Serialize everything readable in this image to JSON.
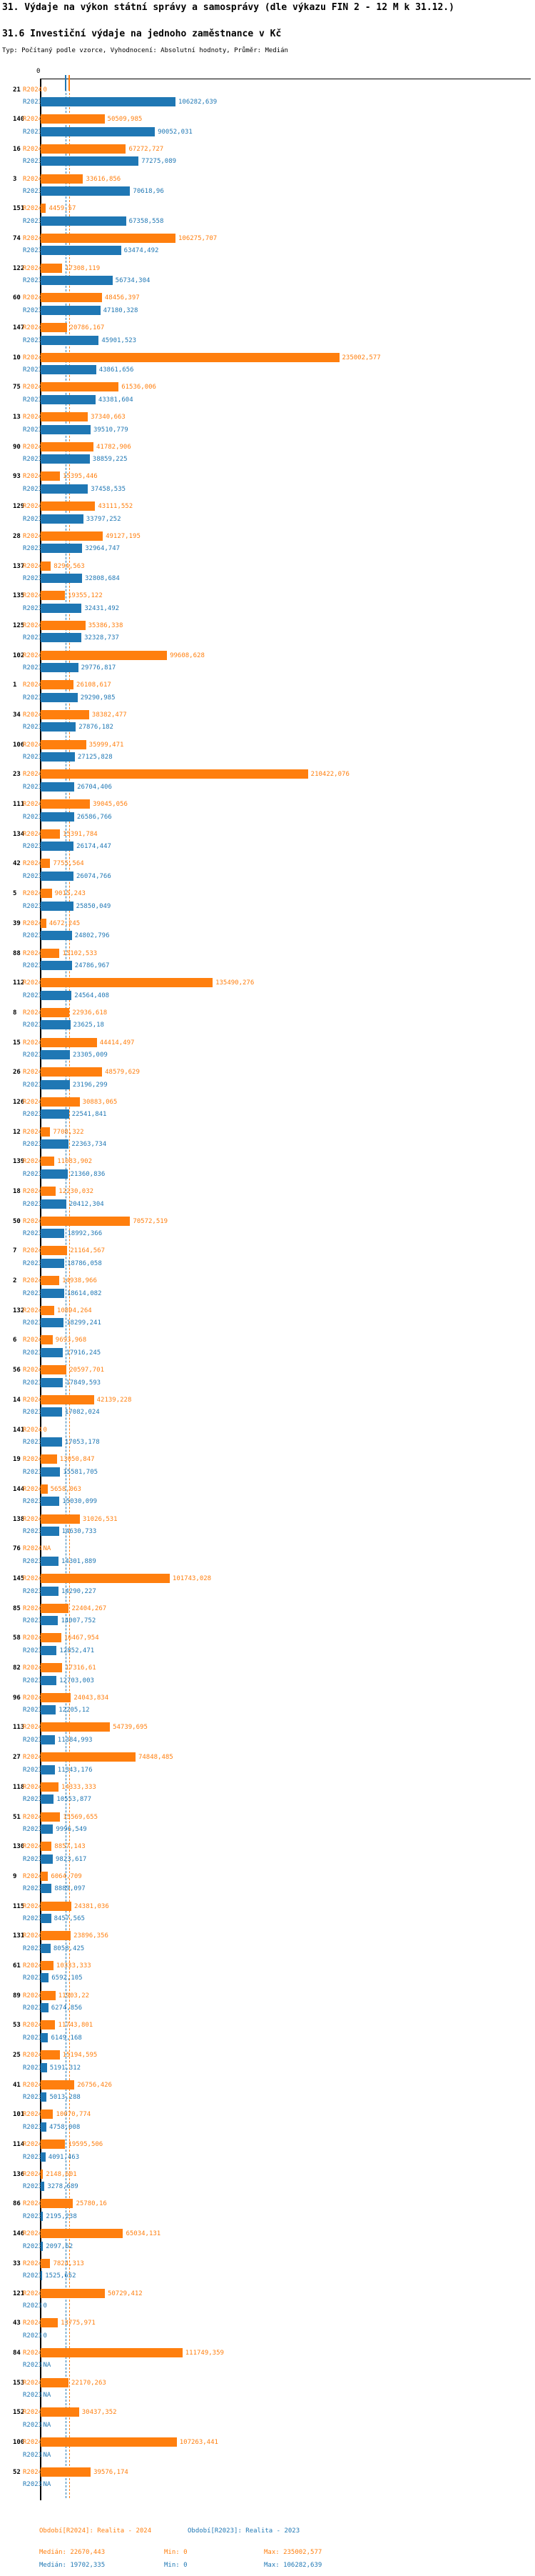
{
  "header": {
    "title": "31. Výdaje na výkon státní správy a samosprávy (dle výkazu FIN 2 - 12 M k 31.12.)",
    "subtitle": "31.6 Investiční výdaje na jednoho zaměstnance v Kč",
    "typ_line": "Typ: Počítaný podle vzorce, Vyhodnocení: Absolutní hodnoty, Průměr: Medián"
  },
  "colors": {
    "r2024": "#ff7f0e",
    "r2023": "#1f77b4",
    "axis": "#000000"
  },
  "legend": {
    "period_2024": "Období[R2024]: Realita - 2024",
    "period_2023": "Období[R2023]: Realita - 2023",
    "median_2024": "Medián: 22670,443",
    "min_2024": "Min: 0",
    "max_2024": "Max: 235002,577",
    "median_2023": "Medián: 19702,335",
    "min_2023": "Min: 0",
    "max_2023": "Max: 106282,639"
  },
  "chart_data": {
    "type": "bar",
    "orientation": "horizontal",
    "title": "31.6 Investiční výdaje na jednoho zaměstnance v Kč",
    "unit": "Kč",
    "x_origin_label": "0",
    "series_labels": [
      "R2024",
      "R2023"
    ],
    "medians": {
      "R2024": 22670.443,
      "R2023": 19702.335
    },
    "mins": {
      "R2024": 0,
      "R2023": 0
    },
    "maxs": {
      "R2024": 235002.577,
      "R2023": 106282.639
    },
    "sort": "descending by R2023",
    "rows": [
      {
        "id": "21",
        "r2024": "0",
        "r2023": "106282,639"
      },
      {
        "id": "140",
        "r2024": "50509,985",
        "r2023": "90052,031"
      },
      {
        "id": "16",
        "r2024": "67272,727",
        "r2023": "77275,089"
      },
      {
        "id": "3",
        "r2024": "33616,856",
        "r2023": "70618,96"
      },
      {
        "id": "151",
        "r2024": "4459,57",
        "r2023": "67358,558"
      },
      {
        "id": "74",
        "r2024": "106275,707",
        "r2023": "63474,492"
      },
      {
        "id": "122",
        "r2024": "17308,119",
        "r2023": "56734,304"
      },
      {
        "id": "60",
        "r2024": "48456,397",
        "r2023": "47180,328"
      },
      {
        "id": "147",
        "r2024": "20786,167",
        "r2023": "45901,523"
      },
      {
        "id": "10",
        "r2024": "235002,577",
        "r2023": "43861,656"
      },
      {
        "id": "75",
        "r2024": "61536,006",
        "r2023": "43381,604"
      },
      {
        "id": "13",
        "r2024": "37340,663",
        "r2023": "39510,779"
      },
      {
        "id": "90",
        "r2024": "41782,906",
        "r2023": "38859,225"
      },
      {
        "id": "93",
        "r2024": "15395,446",
        "r2023": "37458,535"
      },
      {
        "id": "129",
        "r2024": "43111,552",
        "r2023": "33797,252"
      },
      {
        "id": "28",
        "r2024": "49127,195",
        "r2023": "32964,747"
      },
      {
        "id": "137",
        "r2024": "8294,563",
        "r2023": "32808,684"
      },
      {
        "id": "135",
        "r2024": "19355,122",
        "r2023": "32431,492"
      },
      {
        "id": "125",
        "r2024": "35386,338",
        "r2023": "32328,737"
      },
      {
        "id": "102",
        "r2024": "99608,628",
        "r2023": "29776,817"
      },
      {
        "id": "1",
        "r2024": "26108,617",
        "r2023": "29290,985"
      },
      {
        "id": "34",
        "r2024": "38382,477",
        "r2023": "27876,182"
      },
      {
        "id": "106",
        "r2024": "35999,471",
        "r2023": "27125,828"
      },
      {
        "id": "23",
        "r2024": "210422,076",
        "r2023": "26704,406"
      },
      {
        "id": "111",
        "r2024": "39045,056",
        "r2023": "26586,766"
      },
      {
        "id": "134",
        "r2024": "15391,784",
        "r2023": "26174,447"
      },
      {
        "id": "42",
        "r2024": "7755,564",
        "r2023": "26074,766"
      },
      {
        "id": "5",
        "r2024": "9015,243",
        "r2023": "25850,049"
      },
      {
        "id": "39",
        "r2024": "4672,245",
        "r2023": "24802,796"
      },
      {
        "id": "88",
        "r2024": "15102,533",
        "r2023": "24786,967"
      },
      {
        "id": "112",
        "r2024": "135490,276",
        "r2023": "24564,408"
      },
      {
        "id": "8",
        "r2024": "22936,618",
        "r2023": "23625,18"
      },
      {
        "id": "15",
        "r2024": "44414,497",
        "r2023": "23305,009"
      },
      {
        "id": "26",
        "r2024": "48579,629",
        "r2023": "23196,299"
      },
      {
        "id": "126",
        "r2024": "30883,065",
        "r2023": "22541,841"
      },
      {
        "id": "12",
        "r2024": "7708,322",
        "r2023": "22363,734"
      },
      {
        "id": "139",
        "r2024": "11083,902",
        "r2023": "21360,836"
      },
      {
        "id": "18",
        "r2024": "12230,032",
        "r2023": "20412,304"
      },
      {
        "id": "50",
        "r2024": "70572,519",
        "r2023": "18992,366"
      },
      {
        "id": "7",
        "r2024": "21164,567",
        "r2023": "18786,058"
      },
      {
        "id": "2",
        "r2024": "14938,966",
        "r2023": "18614,082"
      },
      {
        "id": "132",
        "r2024": "10894,264",
        "r2023": "18299,241"
      },
      {
        "id": "6",
        "r2024": "9693,968",
        "r2023": "17916,245"
      },
      {
        "id": "56",
        "r2024": "20597,701",
        "r2023": "17849,593"
      },
      {
        "id": "14",
        "r2024": "42139,228",
        "r2023": "17082,024"
      },
      {
        "id": "141",
        "r2024": "0",
        "r2023": "17053,178"
      },
      {
        "id": "19",
        "r2024": "13050,847",
        "r2023": "15581,705"
      },
      {
        "id": "144",
        "r2024": "5658,063",
        "r2023": "15030,099"
      },
      {
        "id": "138",
        "r2024": "31026,531",
        "r2023": "14630,733"
      },
      {
        "id": "76",
        "r2024": "NA",
        "r2023": "14301,889"
      },
      {
        "id": "145",
        "r2024": "101743,028",
        "r2023": "14290,227"
      },
      {
        "id": "85",
        "r2024": "22404,267",
        "r2023": "14007,752"
      },
      {
        "id": "58",
        "r2024": "16467,954",
        "r2023": "12852,471"
      },
      {
        "id": "82",
        "r2024": "17316,61",
        "r2023": "12703,003"
      },
      {
        "id": "96",
        "r2024": "24043,834",
        "r2023": "12205,12"
      },
      {
        "id": "113",
        "r2024": "54739,695",
        "r2023": "11384,993"
      },
      {
        "id": "27",
        "r2024": "74848,485",
        "r2023": "11343,176"
      },
      {
        "id": "118",
        "r2024": "14333,333",
        "r2023": "10553,877"
      },
      {
        "id": "51",
        "r2024": "15569,655",
        "r2023": "9996,549"
      },
      {
        "id": "130",
        "r2024": "8857,143",
        "r2023": "9823,617"
      },
      {
        "id": "9",
        "r2024": "6064,709",
        "r2023": "8889,097"
      },
      {
        "id": "115",
        "r2024": "24381,036",
        "r2023": "8457,565"
      },
      {
        "id": "131",
        "r2024": "23896,356",
        "r2023": "8058,425"
      },
      {
        "id": "61",
        "r2024": "10333,333",
        "r2023": "6592,105"
      },
      {
        "id": "89",
        "r2024": "11903,22",
        "r2023": "6274,856"
      },
      {
        "id": "53",
        "r2024": "11743,801",
        "r2023": "6149,168"
      },
      {
        "id": "25",
        "r2024": "15194,595",
        "r2023": "5191,312"
      },
      {
        "id": "41",
        "r2024": "26756,426",
        "r2023": "5013,288"
      },
      {
        "id": "101",
        "r2024": "10070,774",
        "r2023": "4758,008"
      },
      {
        "id": "114",
        "r2024": "19595,506",
        "r2023": "4091,463"
      },
      {
        "id": "136",
        "r2024": "2148,601",
        "r2023": "3278,689"
      },
      {
        "id": "86",
        "r2024": "25780,16",
        "r2023": "2195,238"
      },
      {
        "id": "146",
        "r2024": "65034,131",
        "r2023": "2097,62"
      },
      {
        "id": "33",
        "r2024": "7824,313",
        "r2023": "1525,652"
      },
      {
        "id": "121",
        "r2024": "50729,412",
        "r2023": "0"
      },
      {
        "id": "43",
        "r2024": "13775,971",
        "r2023": "0"
      },
      {
        "id": "84",
        "r2024": "111749,359",
        "r2023": "NA"
      },
      {
        "id": "153",
        "r2024": "22170,263",
        "r2023": "NA"
      },
      {
        "id": "152",
        "r2024": "30437,352",
        "r2023": "NA"
      },
      {
        "id": "100",
        "r2024": "107263,441",
        "r2023": "NA"
      },
      {
        "id": "52",
        "r2024": "39576,174",
        "r2023": "NA"
      }
    ]
  }
}
